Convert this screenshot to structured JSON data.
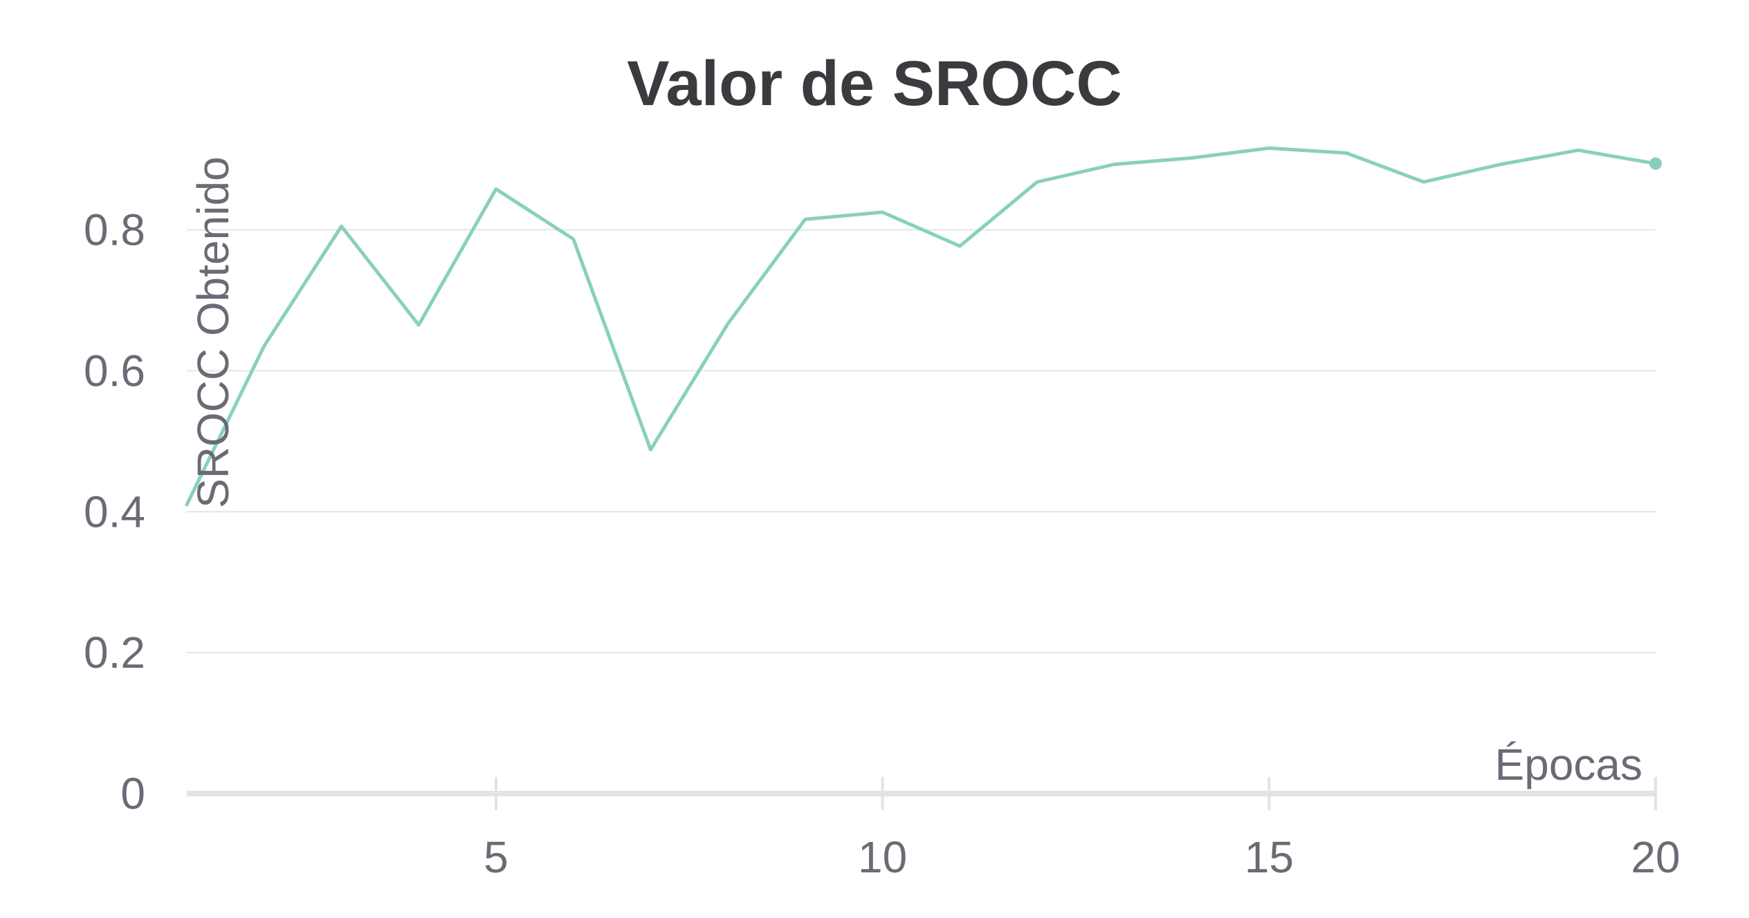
{
  "chart_data": {
    "type": "line",
    "title": "Valor de SROCC",
    "xlabel": "Épocas",
    "ylabel": "SROCC Obtenido",
    "xlim": [
      1,
      20
    ],
    "ylim": [
      0,
      0.93
    ],
    "xticks": [
      5,
      10,
      15,
      20
    ],
    "xtick_labels": [
      "5",
      "10",
      "15",
      "20"
    ],
    "yticks": [
      0,
      0.2,
      0.4,
      0.6,
      0.8
    ],
    "ytick_labels": [
      "0",
      "0.2",
      "0.4",
      "0.6",
      "0.8"
    ],
    "grid": true,
    "legend": "none",
    "series": [
      {
        "color": "#88d0bd",
        "x": [
          1,
          2,
          3,
          4,
          5,
          6,
          7,
          8,
          9,
          10,
          11,
          12,
          13,
          14,
          15,
          16,
          17,
          18,
          19,
          20
        ],
        "values": [
          0.41,
          0.635,
          0.805,
          0.665,
          0.858,
          0.787,
          0.488,
          0.667,
          0.815,
          0.825,
          0.777,
          0.868,
          0.893,
          0.902,
          0.916,
          0.909,
          0.868,
          0.893,
          0.913,
          0.894
        ]
      }
    ]
  }
}
